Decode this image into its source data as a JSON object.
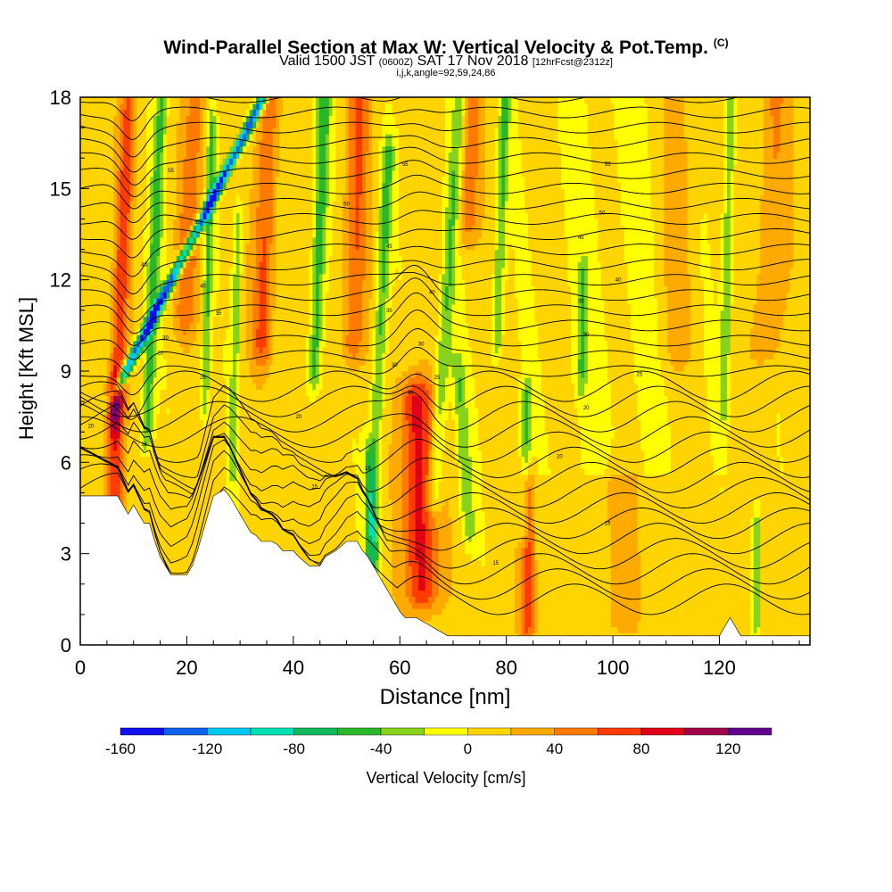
{
  "title": "Wind-Parallel Section at Max W: Vertical Velocity & Pot.Temp.",
  "copyright": "(C)",
  "subtitle": {
    "main_a": "Valid 1500 JST",
    "zulu": "(0600Z)",
    "main_b": "SAT 17 Nov 2018",
    "fcst": "[12hrFcst@2312z]"
  },
  "subsubtitle": "i,j,k,angle=92,59,24,86",
  "colorbar_label": "Vertical Velocity [cm/s]",
  "colors": {
    "scale": [
      "#1010ee",
      "#0e62ee",
      "#00c8ee",
      "#00e0b4",
      "#10b85a",
      "#2ab82a",
      "#86d21c",
      "#ffff00",
      "#ffd400",
      "#ffaa00",
      "#ff7a00",
      "#ff3c00",
      "#e00018",
      "#a0004a",
      "#60008c"
    ],
    "terrain": "#ffffff"
  },
  "chart_data": {
    "type": "heatmap",
    "xlabel": "Distance [nm]",
    "ylabel": "Height [Kft MSL]",
    "xlim": [
      0,
      137
    ],
    "ylim": [
      0,
      18
    ],
    "xticks": [
      0,
      20,
      40,
      60,
      80,
      100,
      120
    ],
    "yticks": [
      0,
      3,
      6,
      9,
      12,
      15,
      18
    ],
    "colorbar_ticks": [
      -160,
      -120,
      -80,
      -40,
      0,
      40,
      80,
      120
    ],
    "colorbar_range": [
      -160,
      140
    ],
    "colorbar_step": 20,
    "terrain_height_profile": [
      [
        0,
        4.9
      ],
      [
        7,
        4.9
      ],
      [
        8,
        4.6
      ],
      [
        9,
        4.3
      ],
      [
        10,
        4.6
      ],
      [
        11,
        4.3
      ],
      [
        12,
        4.0
      ],
      [
        13,
        4.0
      ],
      [
        14,
        3.4
      ],
      [
        15,
        2.9
      ],
      [
        16,
        2.6
      ],
      [
        17,
        2.3
      ],
      [
        20,
        2.3
      ],
      [
        21,
        2.6
      ],
      [
        22,
        3.1
      ],
      [
        23,
        3.7
      ],
      [
        24,
        4.3
      ],
      [
        25,
        4.9
      ],
      [
        27,
        5.1
      ],
      [
        28,
        4.9
      ],
      [
        29,
        4.6
      ],
      [
        30,
        4.3
      ],
      [
        31,
        4.0
      ],
      [
        32,
        3.7
      ],
      [
        33,
        3.6
      ],
      [
        34,
        3.4
      ],
      [
        36,
        3.4
      ],
      [
        37,
        3.3
      ],
      [
        38,
        3.1
      ],
      [
        40,
        3.1
      ],
      [
        41,
        2.9
      ],
      [
        43,
        2.6
      ],
      [
        45,
        2.6
      ],
      [
        46,
        2.9
      ],
      [
        48,
        3.1
      ],
      [
        50,
        3.4
      ],
      [
        52,
        3.4
      ],
      [
        53,
        3.1
      ],
      [
        54,
        2.9
      ],
      [
        55,
        2.6
      ],
      [
        56,
        2.3
      ],
      [
        57,
        2.0
      ],
      [
        58,
        1.7
      ],
      [
        59,
        1.4
      ],
      [
        60,
        1.1
      ],
      [
        61,
        0.9
      ],
      [
        63,
        0.9
      ],
      [
        66,
        0.6
      ],
      [
        69,
        0.3
      ],
      [
        78,
        0.3
      ],
      [
        80,
        0.3
      ],
      [
        82,
        0.3
      ],
      [
        105,
        0.3
      ],
      [
        120,
        0.3
      ],
      [
        121,
        0.6
      ],
      [
        122,
        0.9
      ],
      [
        123,
        0.6
      ],
      [
        124,
        0.3
      ],
      [
        137,
        0.3
      ]
    ],
    "theta_contour_labels": [
      {
        "x": 2,
        "y": 7.2,
        "label": "20"
      },
      {
        "x": 12,
        "y": 6.6,
        "label": "15"
      },
      {
        "x": 44,
        "y": 5.2,
        "label": "15"
      },
      {
        "x": 54,
        "y": 5.8,
        "label": "15"
      },
      {
        "x": 78,
        "y": 2.7,
        "label": "15"
      },
      {
        "x": 99,
        "y": 4.0,
        "label": "15"
      },
      {
        "x": 41,
        "y": 7.5,
        "label": "20"
      },
      {
        "x": 62,
        "y": 8.3,
        "label": "20"
      },
      {
        "x": 90,
        "y": 6.2,
        "label": "20"
      },
      {
        "x": 95,
        "y": 7.8,
        "label": "20"
      },
      {
        "x": 23,
        "y": 8.8,
        "label": "25"
      },
      {
        "x": 67,
        "y": 8.8,
        "label": "25"
      },
      {
        "x": 105,
        "y": 8.9,
        "label": "25"
      },
      {
        "x": 15,
        "y": 9.6,
        "label": "25"
      },
      {
        "x": 16,
        "y": 10.1,
        "label": "30"
      },
      {
        "x": 59,
        "y": 9.2,
        "label": "30"
      },
      {
        "x": 64,
        "y": 9.9,
        "label": "30"
      },
      {
        "x": 95,
        "y": 10.2,
        "label": "30"
      },
      {
        "x": 26,
        "y": 10.9,
        "label": "35"
      },
      {
        "x": 58,
        "y": 11.0,
        "label": "35"
      },
      {
        "x": 94,
        "y": 11.3,
        "label": "35"
      },
      {
        "x": 23,
        "y": 11.8,
        "label": "40"
      },
      {
        "x": 66,
        "y": 11.6,
        "label": "40"
      },
      {
        "x": 101,
        "y": 12.0,
        "label": "40"
      },
      {
        "x": 12,
        "y": 12.5,
        "label": "45"
      },
      {
        "x": 58,
        "y": 13.1,
        "label": "45"
      },
      {
        "x": 94,
        "y": 13.4,
        "label": "45"
      },
      {
        "x": 22,
        "y": 13.9,
        "label": "50"
      },
      {
        "x": 50,
        "y": 14.5,
        "label": "50"
      },
      {
        "x": 98,
        "y": 14.2,
        "label": "50"
      },
      {
        "x": 17,
        "y": 15.6,
        "label": "55"
      },
      {
        "x": 61,
        "y": 15.8,
        "label": "55"
      },
      {
        "x": 99,
        "y": 15.8,
        "label": "55"
      }
    ]
  }
}
